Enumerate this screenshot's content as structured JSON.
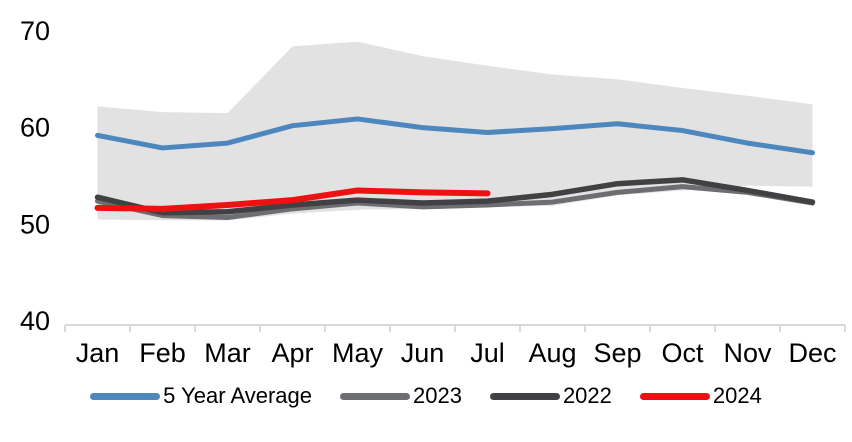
{
  "chart_data": {
    "type": "line",
    "title": "",
    "xlabel": "",
    "ylabel": "",
    "x": [
      "Jan",
      "Feb",
      "Mar",
      "Apr",
      "May",
      "Jun",
      "Jul",
      "Aug",
      "Sep",
      "Oct",
      "Nov",
      "Dec"
    ],
    "ylim": [
      40,
      70
    ],
    "yticks": [
      40,
      50,
      60,
      70
    ],
    "grid": false,
    "legend_position": "bottom",
    "axis_color": "#d9d9d9",
    "text_color": "#000000",
    "background": "#ffffff",
    "band": {
      "name": "5-year range",
      "color": "#e2e2e2",
      "top": [
        62.1,
        61.5,
        61.4,
        68.3,
        68.8,
        67.3,
        66.3,
        65.4,
        64.9,
        64.0,
        63.2,
        62.3
      ],
      "bottom": [
        50.4,
        50.3,
        50.3,
        51.0,
        51.4,
        51.5,
        51.7,
        51.8,
        52.9,
        53.4,
        53.9,
        53.8
      ]
    },
    "series": [
      {
        "name": "5 Year Average",
        "color": "#4e86be",
        "width": 5,
        "values": [
          59.1,
          57.8,
          58.3,
          60.1,
          60.8,
          59.9,
          59.4,
          59.8,
          60.3,
          59.6,
          58.3,
          57.3
        ]
      },
      {
        "name": "2023",
        "color": "#6d6e71",
        "width": 5,
        "values": [
          52.3,
          50.8,
          50.6,
          51.5,
          52.1,
          51.7,
          51.9,
          52.2,
          53.2,
          53.8,
          53.2,
          52.1
        ]
      },
      {
        "name": "2022",
        "color": "#414042",
        "width": 5.5,
        "values": [
          52.7,
          51.1,
          51.2,
          51.9,
          52.4,
          52.1,
          52.3,
          53.0,
          54.1,
          54.5,
          53.4,
          52.2
        ]
      },
      {
        "name": "2024",
        "color": "#ee1111",
        "width": 6,
        "values": [
          51.6,
          51.5,
          51.9,
          52.4,
          53.4,
          53.2,
          53.1,
          null,
          null,
          null,
          null,
          null
        ]
      }
    ]
  }
}
